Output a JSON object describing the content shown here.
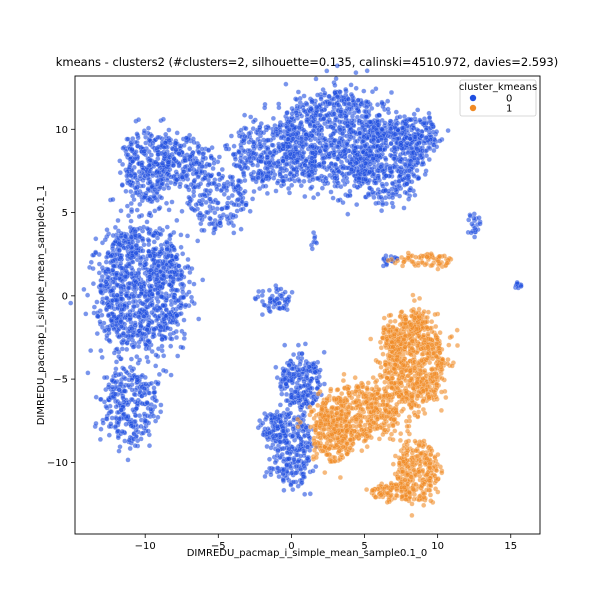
{
  "chart_data": {
    "type": "scatter",
    "title": "kmeans - clusters2 (#clusters=2, silhouette=0.135, calinski=4510.972, davies=2.593)",
    "xlabel": "DIMREDU_pacmap_i_simple_mean_sample0.1_0",
    "ylabel": "DIMREDU_pacmap_i_simple_mean_sample0.1_1",
    "xlim": [
      -14.8,
      17
    ],
    "ylim": [
      -14.3,
      13.2
    ],
    "xticks": [
      -10,
      -5,
      0,
      5,
      10,
      15
    ],
    "yticks": [
      -10,
      -5,
      0,
      5,
      10
    ],
    "grid": false,
    "legend": {
      "title": "cluster_kmeans",
      "placement": "top-right",
      "entries": [
        {
          "label": "0",
          "color": "#1f4fe0"
        },
        {
          "label": "1",
          "color": "#f08a24"
        }
      ]
    },
    "series": [
      {
        "name": "0",
        "color": "#1f4fe0",
        "regions": [
          {
            "cx": -10.2,
            "cy": 0.5,
            "rx": 2.9,
            "ry": 3.6,
            "n": 1100
          },
          {
            "cx": -11.0,
            "cy": -6.5,
            "rx": 1.8,
            "ry": 2.3,
            "n": 300
          },
          {
            "cx": -9.8,
            "cy": 7.8,
            "rx": 1.6,
            "ry": 2.2,
            "n": 300
          },
          {
            "cx": -7.5,
            "cy": 8.2,
            "rx": 2.0,
            "ry": 1.3,
            "n": 200
          },
          {
            "cx": -5.0,
            "cy": 5.8,
            "rx": 2.0,
            "ry": 1.6,
            "n": 180
          },
          {
            "cx": -1.5,
            "cy": 8.5,
            "rx": 2.6,
            "ry": 1.8,
            "n": 350
          },
          {
            "cx": 3.0,
            "cy": 9.5,
            "rx": 3.5,
            "ry": 2.8,
            "n": 900
          },
          {
            "cx": 6.5,
            "cy": 8.0,
            "rx": 2.5,
            "ry": 2.2,
            "n": 420
          },
          {
            "cx": 8.6,
            "cy": 9.6,
            "rx": 1.5,
            "ry": 1.1,
            "n": 160
          },
          {
            "cx": -1.2,
            "cy": -0.2,
            "rx": 1.0,
            "ry": 0.8,
            "n": 60
          },
          {
            "cx": 0.6,
            "cy": -5.2,
            "rx": 1.4,
            "ry": 1.6,
            "n": 220
          },
          {
            "cx": 0.0,
            "cy": -9.2,
            "rx": 1.4,
            "ry": 2.2,
            "n": 260
          },
          {
            "cx": -1.3,
            "cy": -7.8,
            "rx": 0.8,
            "ry": 0.8,
            "n": 70
          },
          {
            "cx": 12.5,
            "cy": 4.3,
            "rx": 0.5,
            "ry": 0.8,
            "n": 22
          },
          {
            "cx": 15.5,
            "cy": 0.6,
            "rx": 0.25,
            "ry": 0.15,
            "n": 12
          },
          {
            "cx": 6.8,
            "cy": 2.1,
            "rx": 0.6,
            "ry": 0.3,
            "n": 18
          },
          {
            "cx": 1.5,
            "cy": 3.2,
            "rx": 0.2,
            "ry": 0.5,
            "n": 8
          }
        ]
      },
      {
        "name": "1",
        "color": "#f08a24",
        "regions": [
          {
            "cx": 8.4,
            "cy": -4.0,
            "rx": 2.0,
            "ry": 2.6,
            "n": 700
          },
          {
            "cx": 4.5,
            "cy": -7.0,
            "rx": 2.7,
            "ry": 1.6,
            "n": 500
          },
          {
            "cx": 2.8,
            "cy": -8.6,
            "rx": 1.3,
            "ry": 1.5,
            "n": 200
          },
          {
            "cx": 8.6,
            "cy": -10.5,
            "rx": 1.4,
            "ry": 1.8,
            "n": 280
          },
          {
            "cx": 6.8,
            "cy": -11.8,
            "rx": 1.4,
            "ry": 0.5,
            "n": 90
          },
          {
            "cx": 7.0,
            "cy": -2.5,
            "rx": 0.8,
            "ry": 0.7,
            "n": 60
          },
          {
            "cx": 8.5,
            "cy": -1.5,
            "rx": 0.8,
            "ry": 0.6,
            "n": 60
          },
          {
            "cx": 9.0,
            "cy": 2.1,
            "rx": 2.2,
            "ry": 0.35,
            "n": 70
          }
        ]
      }
    ]
  }
}
